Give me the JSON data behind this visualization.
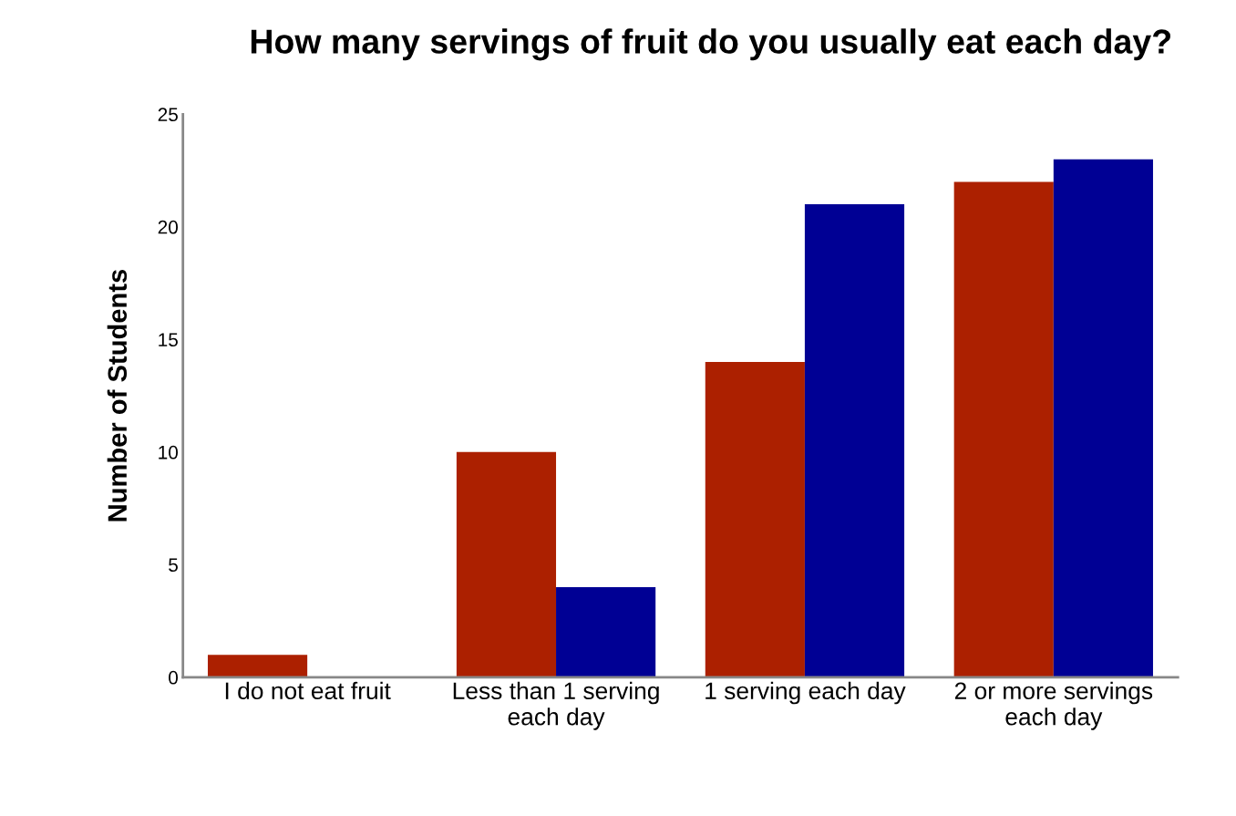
{
  "chart_data": {
    "type": "bar",
    "title": "How many servings of fruit do you usually eat each day?",
    "ylabel": "Number of Students",
    "categories": [
      "I do not eat fruit",
      "Less than 1 serving\neach day",
      "1 serving each day",
      "2 or more servings\neach day"
    ],
    "series": [
      {
        "color": "#ac2000",
        "values": [
          1,
          10,
          14,
          22
        ]
      },
      {
        "color": "#000094",
        "values": [
          0,
          4,
          21,
          23
        ]
      }
    ],
    "ylim": [
      0,
      25
    ],
    "yticks": [
      0,
      5,
      10,
      15,
      20,
      25
    ],
    "grid": false
  }
}
